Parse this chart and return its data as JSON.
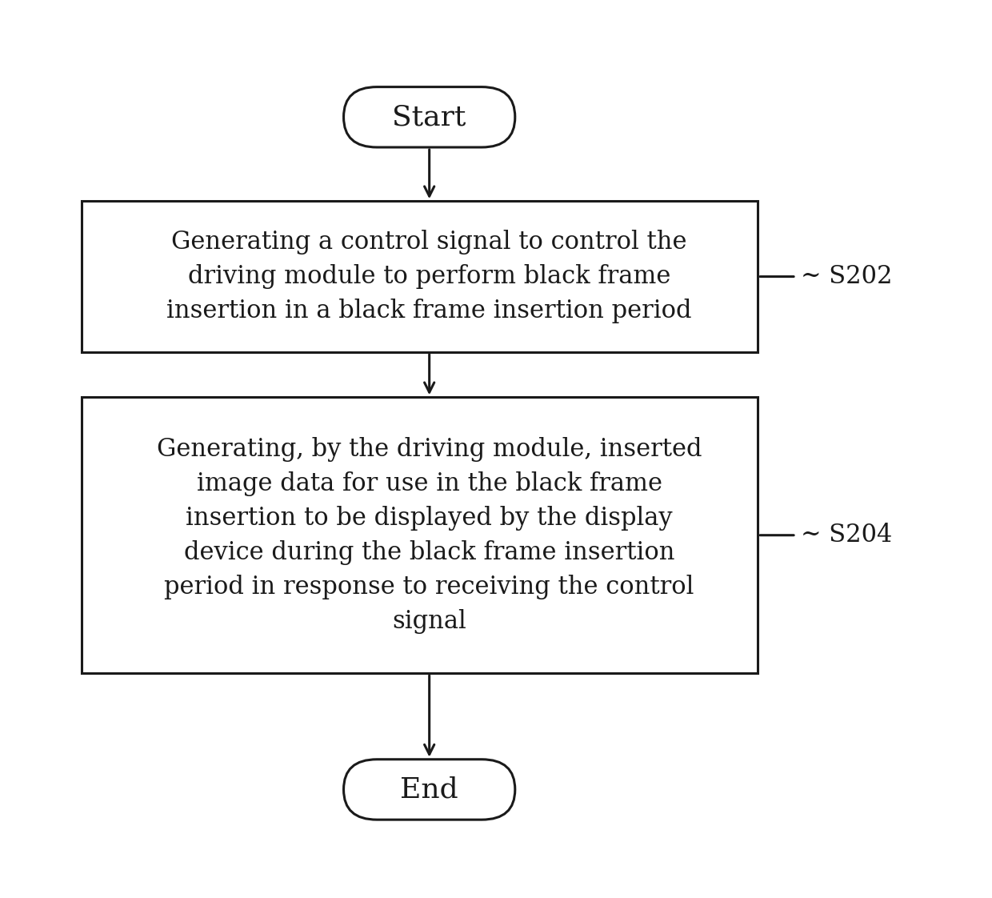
{
  "bg_color": "#ffffff",
  "border_color": "#1a1a1a",
  "text_color": "#1a1a1a",
  "arrow_color": "#1a1a1a",
  "start_end_label": [
    "Start",
    "End"
  ],
  "box1_text": "Generating a control signal to control the\ndriving module to perform black frame\ninsertion in a black frame insertion period",
  "box2_text": "Generating, by the driving module, inserted\nimage data for use in the black frame\ninsertion to be displayed by the display\ndevice during the black frame insertion\nperiod in response to receiving the control\nsignal",
  "label1": "~ S202",
  "label2": "~ S204",
  "font_size_terminal": 26,
  "font_size_box": 22,
  "font_size_label": 22,
  "line_width": 2.2
}
